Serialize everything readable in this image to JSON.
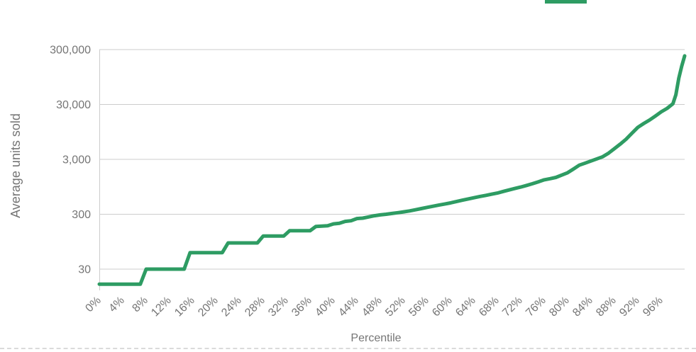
{
  "colors": {
    "line": "#2E9C63",
    "grid": "#CCCCCC",
    "axis_line": "#CCCCCC",
    "axis_text": "#757575"
  },
  "legend": {
    "swatch_color": "#2E9C63"
  },
  "chart_data": {
    "type": "line",
    "title": "",
    "xlabel": "Percentile",
    "ylabel": "Average units sold",
    "y_scale": "log",
    "y_ticks": [
      30,
      300,
      3000,
      30000,
      300000
    ],
    "y_tick_labels": [
      "30",
      "300",
      "3,000",
      "30,000",
      "300,000"
    ],
    "x_tick_values": [
      0,
      4,
      8,
      12,
      16,
      20,
      24,
      28,
      32,
      36,
      40,
      44,
      48,
      52,
      56,
      60,
      64,
      68,
      72,
      76,
      80,
      84,
      88,
      92,
      96
    ],
    "x_tick_labels": [
      "0%",
      "4%",
      "8%",
      "12%",
      "16%",
      "20%",
      "24%",
      "28%",
      "32%",
      "36%",
      "40%",
      "44%",
      "48%",
      "52%",
      "56%",
      "60%",
      "64%",
      "68%",
      "72%",
      "76%",
      "80%",
      "84%",
      "88%",
      "92%",
      "96%"
    ],
    "xlim": [
      0,
      100
    ],
    "ylim": [
      15,
      300000
    ],
    "grid": "horizontal-only",
    "legend_position": "top-right-cropped",
    "series": [
      {
        "color": "#2E9C63",
        "points": [
          [
            0,
            16
          ],
          [
            7,
            16
          ],
          [
            8,
            30
          ],
          [
            14.5,
            30
          ],
          [
            15.5,
            60
          ],
          [
            21,
            60
          ],
          [
            22,
            90
          ],
          [
            27,
            90
          ],
          [
            28,
            120
          ],
          [
            31.5,
            120
          ],
          [
            32.5,
            150
          ],
          [
            36,
            150
          ],
          [
            37,
            180
          ],
          [
            39,
            185
          ],
          [
            40,
            200
          ],
          [
            41,
            205
          ],
          [
            42,
            222
          ],
          [
            43,
            228
          ],
          [
            44,
            250
          ],
          [
            45,
            255
          ],
          [
            46,
            268
          ],
          [
            47,
            282
          ],
          [
            48,
            292
          ],
          [
            49,
            300
          ],
          [
            50,
            310
          ],
          [
            51,
            320
          ],
          [
            52,
            332
          ],
          [
            53,
            345
          ],
          [
            54,
            362
          ],
          [
            55,
            380
          ],
          [
            56,
            400
          ],
          [
            57,
            420
          ],
          [
            58,
            440
          ],
          [
            59,
            460
          ],
          [
            60,
            482
          ],
          [
            61,
            510
          ],
          [
            62,
            540
          ],
          [
            63,
            570
          ],
          [
            64,
            600
          ],
          [
            65,
            632
          ],
          [
            66,
            662
          ],
          [
            67,
            695
          ],
          [
            68,
            730
          ],
          [
            69,
            780
          ],
          [
            70,
            830
          ],
          [
            71,
            885
          ],
          [
            72,
            940
          ],
          [
            73,
            1005
          ],
          [
            74,
            1080
          ],
          [
            75,
            1170
          ],
          [
            76,
            1270
          ],
          [
            77,
            1335
          ],
          [
            78,
            1405
          ],
          [
            79,
            1550
          ],
          [
            80,
            1710
          ],
          [
            81,
            2000
          ],
          [
            82,
            2350
          ],
          [
            83,
            2560
          ],
          [
            84,
            2800
          ],
          [
            85,
            3060
          ],
          [
            86,
            3350
          ],
          [
            87,
            3900
          ],
          [
            88,
            4700
          ],
          [
            89,
            5700
          ],
          [
            90,
            7000
          ],
          [
            91,
            9000
          ],
          [
            92,
            11500
          ],
          [
            93,
            13500
          ],
          [
            94,
            15600
          ],
          [
            95,
            18500
          ],
          [
            96,
            22000
          ],
          [
            97,
            25500
          ],
          [
            98,
            31000
          ],
          [
            98.5,
            45000
          ],
          [
            99,
            91000
          ],
          [
            99.5,
            150000
          ],
          [
            100,
            230000
          ]
        ]
      }
    ]
  }
}
